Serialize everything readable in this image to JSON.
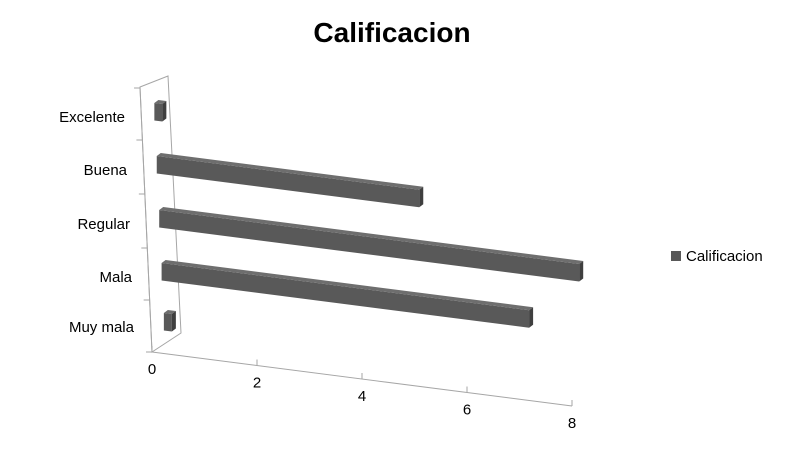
{
  "chart_data": {
    "type": "bar",
    "orientation": "horizontal",
    "style": "3d",
    "title": "Calificacion",
    "xlabel": "",
    "ylabel": "",
    "categories": [
      "Excelente",
      "Buena",
      "Regular",
      "Mala",
      "Muy mala"
    ],
    "series": [
      {
        "name": "Calificacion",
        "values": [
          0,
          5,
          8,
          7,
          0
        ],
        "color": "#595959"
      }
    ],
    "xlim": [
      0,
      8
    ],
    "xticks": [
      "0",
      "2",
      "4",
      "6",
      "8"
    ],
    "grid": false,
    "legend": "right"
  }
}
